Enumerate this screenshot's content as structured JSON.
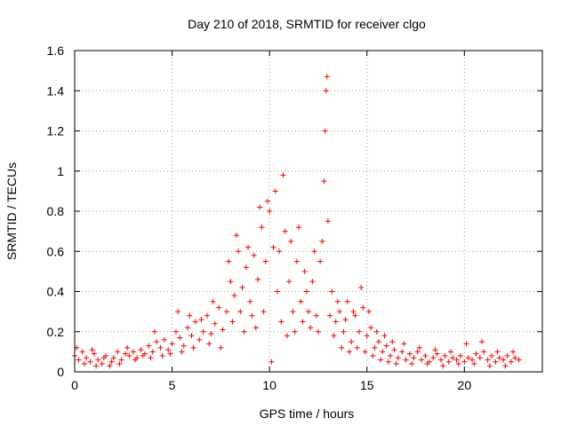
{
  "chart_data": {
    "type": "scatter",
    "title": "Day 210 of 2018, SRMTID for receiver clgo",
    "xlabel": "GPS time / hours",
    "ylabel": "SRMTID / TECUs",
    "xlim": [
      0,
      24
    ],
    "ylim": [
      0,
      1.6
    ],
    "xticks": [
      0,
      5,
      10,
      15,
      20
    ],
    "xtick_labels": [
      "0",
      "5",
      "10",
      "15",
      "20"
    ],
    "yticks": [
      0,
      0.2,
      0.4,
      0.6,
      0.8,
      1.0,
      1.2,
      1.4,
      1.6
    ],
    "ytick_labels": [
      "0",
      "0.2",
      "0.4",
      "0.6",
      "0.8",
      "1",
      "1.2",
      "1.4",
      "1.6"
    ],
    "grid": true,
    "marker": "+",
    "series_color": "#ff0000",
    "series": [
      {
        "name": "SRMTID",
        "points": [
          [
            0.0,
            0.08
          ],
          [
            0.2,
            0.06
          ],
          [
            0.4,
            0.1
          ],
          [
            0.6,
            0.07
          ],
          [
            0.8,
            0.05
          ],
          [
            1.0,
            0.09
          ],
          [
            1.2,
            0.06
          ],
          [
            1.4,
            0.04
          ],
          [
            1.6,
            0.08
          ],
          [
            1.8,
            0.03
          ],
          [
            2.0,
            0.07
          ],
          [
            2.2,
            0.1
          ],
          [
            2.4,
            0.06
          ],
          [
            2.6,
            0.09
          ],
          [
            2.8,
            0.08
          ],
          [
            3.0,
            0.1
          ],
          [
            3.2,
            0.07
          ],
          [
            3.4,
            0.11
          ],
          [
            3.6,
            0.09
          ],
          [
            3.8,
            0.13
          ],
          [
            4.0,
            0.1
          ],
          [
            4.2,
            0.15
          ],
          [
            4.4,
            0.12
          ],
          [
            4.6,
            0.16
          ],
          [
            4.8,
            0.11
          ],
          [
            5.0,
            0.14
          ],
          [
            5.2,
            0.2
          ],
          [
            5.4,
            0.17
          ],
          [
            5.6,
            0.13
          ],
          [
            5.8,
            0.22
          ],
          [
            6.0,
            0.18
          ],
          [
            6.2,
            0.25
          ],
          [
            6.4,
            0.16
          ],
          [
            6.6,
            0.2
          ],
          [
            6.8,
            0.28
          ],
          [
            7.0,
            0.19
          ],
          [
            7.2,
            0.24
          ],
          [
            7.4,
            0.32
          ],
          [
            7.6,
            0.21
          ],
          [
            7.8,
            0.3
          ],
          [
            8.0,
            0.45
          ],
          [
            8.2,
            0.38
          ],
          [
            8.4,
            0.6
          ],
          [
            8.6,
            0.42
          ],
          [
            8.8,
            0.52
          ],
          [
            9.0,
            0.35
          ],
          [
            9.2,
            0.58
          ],
          [
            9.4,
            0.46
          ],
          [
            9.6,
            0.72
          ],
          [
            9.8,
            0.55
          ],
          [
            10.0,
            0.8
          ],
          [
            10.2,
            0.62
          ],
          [
            10.4,
            0.4
          ],
          [
            10.6,
            0.25
          ],
          [
            10.8,
            0.7
          ],
          [
            11.0,
            0.45
          ],
          [
            11.2,
            0.3
          ],
          [
            11.4,
            0.55
          ],
          [
            11.6,
            0.35
          ],
          [
            11.8,
            0.5
          ],
          [
            12.0,
            0.3
          ],
          [
            12.2,
            0.45
          ],
          [
            12.4,
            0.28
          ],
          [
            12.6,
            0.55
          ],
          [
            12.8,
            0.95
          ],
          [
            12.9,
            1.4
          ],
          [
            13.0,
            0.75
          ],
          [
            13.2,
            0.4
          ],
          [
            13.4,
            0.25
          ],
          [
            13.6,
            0.3
          ],
          [
            13.8,
            0.2
          ],
          [
            14.0,
            0.35
          ],
          [
            14.2,
            0.15
          ],
          [
            14.4,
            0.28
          ],
          [
            14.6,
            0.2
          ],
          [
            14.8,
            0.32
          ],
          [
            15.0,
            0.18
          ],
          [
            15.2,
            0.22
          ],
          [
            15.4,
            0.12
          ],
          [
            15.6,
            0.15
          ],
          [
            15.8,
            0.1
          ],
          [
            16.0,
            0.13
          ],
          [
            16.2,
            0.08
          ],
          [
            16.4,
            0.11
          ],
          [
            16.6,
            0.07
          ],
          [
            16.8,
            0.1
          ],
          [
            17.0,
            0.06
          ],
          [
            17.2,
            0.09
          ],
          [
            17.4,
            0.07
          ],
          [
            17.6,
            0.1
          ],
          [
            17.8,
            0.06
          ],
          [
            18.0,
            0.08
          ],
          [
            18.2,
            0.05
          ],
          [
            18.4,
            0.07
          ],
          [
            18.6,
            0.09
          ],
          [
            18.8,
            0.06
          ],
          [
            19.0,
            0.08
          ],
          [
            19.2,
            0.05
          ],
          [
            19.4,
            0.07
          ],
          [
            19.6,
            0.06
          ],
          [
            19.8,
            0.08
          ],
          [
            20.0,
            0.05
          ],
          [
            20.2,
            0.07
          ],
          [
            20.4,
            0.06
          ],
          [
            20.6,
            0.09
          ],
          [
            20.8,
            0.07
          ],
          [
            21.0,
            0.1
          ],
          [
            21.2,
            0.06
          ],
          [
            21.4,
            0.08
          ],
          [
            21.6,
            0.05
          ],
          [
            21.8,
            0.07
          ],
          [
            22.0,
            0.06
          ],
          [
            22.2,
            0.08
          ],
          [
            22.4,
            0.05
          ],
          [
            22.6,
            0.07
          ],
          [
            22.8,
            0.06
          ],
          [
            0.1,
            0.12
          ],
          [
            0.5,
            0.04
          ],
          [
            0.9,
            0.11
          ],
          [
            1.1,
            0.03
          ],
          [
            1.5,
            0.07
          ],
          [
            1.9,
            0.05
          ],
          [
            2.3,
            0.04
          ],
          [
            2.7,
            0.12
          ],
          [
            3.1,
            0.06
          ],
          [
            3.5,
            0.08
          ],
          [
            3.9,
            0.07
          ],
          [
            4.1,
            0.2
          ],
          [
            4.5,
            0.08
          ],
          [
            4.9,
            0.09
          ],
          [
            5.3,
            0.3
          ],
          [
            5.5,
            0.1
          ],
          [
            5.9,
            0.28
          ],
          [
            6.1,
            0.12
          ],
          [
            6.5,
            0.26
          ],
          [
            6.9,
            0.14
          ],
          [
            7.1,
            0.35
          ],
          [
            7.5,
            0.12
          ],
          [
            7.9,
            0.55
          ],
          [
            8.1,
            0.25
          ],
          [
            8.3,
            0.68
          ],
          [
            8.5,
            0.3
          ],
          [
            8.7,
            0.2
          ],
          [
            8.9,
            0.62
          ],
          [
            9.1,
            0.28
          ],
          [
            9.3,
            0.22
          ],
          [
            9.5,
            0.82
          ],
          [
            9.7,
            0.3
          ],
          [
            9.9,
            0.85
          ],
          [
            10.1,
            0.05
          ],
          [
            10.3,
            0.9
          ],
          [
            10.5,
            0.6
          ],
          [
            10.7,
            0.98
          ],
          [
            10.9,
            0.18
          ],
          [
            11.1,
            0.65
          ],
          [
            11.3,
            0.2
          ],
          [
            11.5,
            0.72
          ],
          [
            11.7,
            0.25
          ],
          [
            11.9,
            0.4
          ],
          [
            12.1,
            0.22
          ],
          [
            12.3,
            0.6
          ],
          [
            12.5,
            0.2
          ],
          [
            12.7,
            0.65
          ],
          [
            12.85,
            1.2
          ],
          [
            12.95,
            1.47
          ],
          [
            13.1,
            0.28
          ],
          [
            13.3,
            0.18
          ],
          [
            13.5,
            0.35
          ],
          [
            13.7,
            0.12
          ],
          [
            13.9,
            0.26
          ],
          [
            14.1,
            0.1
          ],
          [
            14.3,
            0.3
          ],
          [
            14.5,
            0.12
          ],
          [
            14.7,
            0.42
          ],
          [
            14.9,
            0.1
          ],
          [
            15.1,
            0.3
          ],
          [
            15.3,
            0.08
          ],
          [
            15.5,
            0.2
          ],
          [
            15.7,
            0.06
          ],
          [
            15.9,
            0.18
          ],
          [
            16.1,
            0.05
          ],
          [
            16.3,
            0.15
          ],
          [
            16.5,
            0.04
          ],
          [
            16.9,
            0.14
          ],
          [
            17.3,
            0.04
          ],
          [
            17.7,
            0.12
          ],
          [
            18.1,
            0.04
          ],
          [
            18.5,
            0.11
          ],
          [
            18.9,
            0.03
          ],
          [
            19.3,
            0.1
          ],
          [
            19.7,
            0.04
          ],
          [
            20.1,
            0.14
          ],
          [
            20.5,
            0.04
          ],
          [
            20.9,
            0.15
          ],
          [
            21.3,
            0.03
          ],
          [
            21.7,
            0.1
          ],
          [
            22.1,
            0.03
          ],
          [
            22.5,
            0.1
          ]
        ]
      }
    ]
  }
}
